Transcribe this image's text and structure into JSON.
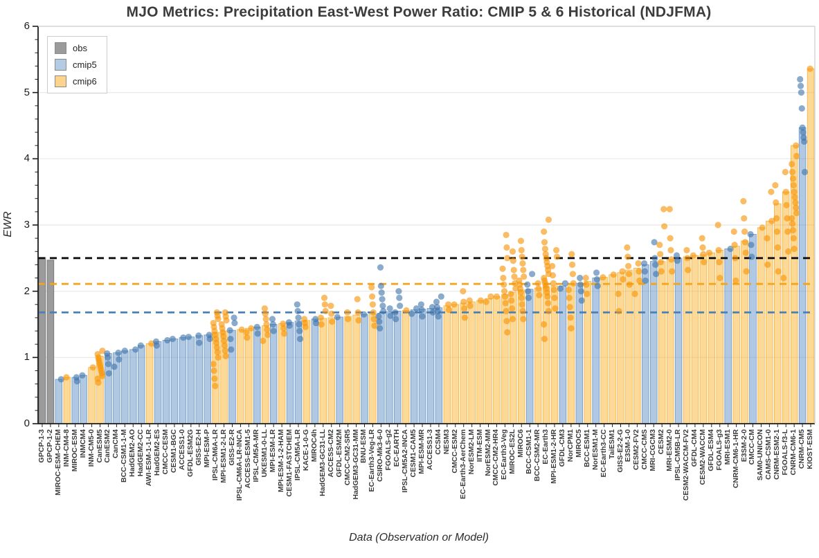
{
  "title": "MJO Metrics: Precipitation East-West Power Ratio: CMIP 5 & 6 Historical (NDJFMA)",
  "legend": {
    "items": [
      {
        "label": "obs",
        "color": "#9b9b9b"
      },
      {
        "label": "cmip5",
        "color": "#b3cce4"
      },
      {
        "label": "cmip6",
        "color": "#fdd48b"
      }
    ]
  },
  "colors": {
    "obs_bar": "#9b9b9b",
    "obs_edge": "#6f6f6f",
    "cmip5_bar": "rgba(70,125,185,0.42)",
    "cmip5_edge": "rgba(70,125,185,0.75)",
    "cmip5_dot": "rgba(62,115,170,0.60)",
    "cmip6_bar": "rgba(251,171,24,0.45)",
    "cmip6_edge": "rgba(244,160,20,0.75)",
    "cmip6_dot": "rgba(247,148,7,0.62)",
    "grid": "#ececec",
    "spine_dark": "#1a1a1a",
    "spine_light": "#cccccc",
    "ref_black": "#111111",
    "ref_orange": "#f5a31a",
    "ref_blue": "#4a7fb5"
  },
  "chart_data": {
    "type": "bar",
    "title": "MJO Metrics: Precipitation East-West Power Ratio: CMIP 5 & 6 Historical (NDJFMA)",
    "xlabel": "Data (Observation or Model)",
    "ylabel": "EWR",
    "ylim": [
      0,
      6
    ],
    "yticks": [
      0,
      1,
      2,
      3,
      4,
      5,
      6
    ],
    "y_minor_step": 0.2,
    "grid": "horizontal-major",
    "legend_position": "upper-left",
    "legend_entries": [
      "obs",
      "cmip5",
      "cmip6"
    ],
    "reference_lines": [
      {
        "name": "obs-mean",
        "value": 2.5,
        "color": "#111111",
        "style": "dashed"
      },
      {
        "name": "cmip6-mean",
        "value": 2.11,
        "color": "#f5a31a",
        "style": "dashed"
      },
      {
        "name": "cmip5-mean",
        "value": 1.68,
        "color": "#4a7fb5",
        "style": "dashed"
      }
    ],
    "bars": [
      {
        "model": "GPCP-1-3",
        "group": "obs",
        "value": 2.51,
        "scatter": []
      },
      {
        "model": "GPCP-1-2",
        "group": "obs",
        "value": 2.47,
        "scatter": []
      },
      {
        "model": "MIROC-ESM-CHEM",
        "group": "cmip5",
        "value": 0.67,
        "scatter": [
          0.67
        ]
      },
      {
        "model": "INM-CM4-8",
        "group": "cmip6",
        "value": 0.7,
        "scatter": [
          0.7
        ]
      },
      {
        "model": "MIROC-ESM",
        "group": "cmip5",
        "value": 0.7,
        "scatter": [
          0.64,
          0.7
        ]
      },
      {
        "model": "INMCM4",
        "group": "cmip5",
        "value": 0.73,
        "scatter": [
          0.73
        ]
      },
      {
        "model": "INM-CM5-0",
        "group": "cmip6",
        "value": 0.85,
        "scatter": [
          0.85
        ]
      },
      {
        "model": "CanESM5",
        "group": "cmip6",
        "value": 1.02,
        "scatter": [
          0.62,
          0.68,
          0.72,
          0.76,
          0.8,
          0.84,
          0.88,
          0.92,
          0.96,
          1.0,
          1.05,
          1.1
        ]
      },
      {
        "model": "CanESM2",
        "group": "cmip5",
        "value": 1.06,
        "scatter": [
          0.76,
          0.9,
          1.0,
          1.06
        ]
      },
      {
        "model": "CanCM4",
        "group": "cmip5",
        "value": 1.07,
        "scatter": [
          0.86,
          0.97,
          1.07
        ]
      },
      {
        "model": "BCC-CSM1-1-M",
        "group": "cmip5",
        "value": 1.1,
        "scatter": [
          1.1
        ]
      },
      {
        "model": "HadGEM2-AO",
        "group": "cmip5",
        "value": 1.12,
        "scatter": [
          1.12
        ]
      },
      {
        "model": "HadGEM2-CC",
        "group": "cmip5",
        "value": 1.18,
        "scatter": [
          1.18
        ]
      },
      {
        "model": "AWI-ESM-1-1-LR",
        "group": "cmip6",
        "value": 1.21,
        "scatter": [
          1.21
        ]
      },
      {
        "model": "HadGEM2-ES",
        "group": "cmip5",
        "value": 1.24,
        "scatter": [
          1.18,
          1.24
        ]
      },
      {
        "model": "CMCC-CESM",
        "group": "cmip5",
        "value": 1.26,
        "scatter": [
          1.26
        ]
      },
      {
        "model": "CESM1-BGC",
        "group": "cmip5",
        "value": 1.28,
        "scatter": [
          1.28
        ]
      },
      {
        "model": "ACCESS1-0",
        "group": "cmip5",
        "value": 1.3,
        "scatter": [
          1.3
        ]
      },
      {
        "model": "GFDL-ESM2G",
        "group": "cmip5",
        "value": 1.31,
        "scatter": [
          1.31
        ]
      },
      {
        "model": "GISS-E2-H",
        "group": "cmip5",
        "value": 1.33,
        "scatter": [
          1.22,
          1.33
        ]
      },
      {
        "model": "MPI-ESM-P",
        "group": "cmip5",
        "value": 1.34,
        "scatter": [
          1.28,
          1.34
        ]
      },
      {
        "model": "IPSL-CM6A-LR",
        "group": "cmip6",
        "value": 1.38,
        "scatter": [
          0.57,
          0.68,
          0.8,
          0.9,
          1.0,
          1.08,
          1.15,
          1.22,
          1.28,
          1.34,
          1.4,
          1.46,
          1.52,
          1.58,
          1.63,
          1.68
        ]
      },
      {
        "model": "MPI-ESM1-2-LR",
        "group": "cmip6",
        "value": 1.4,
        "scatter": [
          1.02,
          1.1,
          1.18,
          1.25,
          1.32,
          1.38,
          1.44,
          1.5,
          1.56,
          1.62,
          1.68
        ]
      },
      {
        "model": "GISS-E2-R",
        "group": "cmip5",
        "value": 1.41,
        "scatter": [
          1.12,
          1.28,
          1.41,
          1.52,
          1.6
        ]
      },
      {
        "model": "IPSL-CM6A-LR-INCA",
        "group": "cmip6",
        "value": 1.42,
        "scatter": [
          1.42
        ]
      },
      {
        "model": "ACCESS-ESM1-5",
        "group": "cmip6",
        "value": 1.44,
        "scatter": [
          1.3,
          1.38,
          1.44
        ]
      },
      {
        "model": "IPSL-CM5A-MR",
        "group": "cmip5",
        "value": 1.46,
        "scatter": [
          1.36,
          1.46
        ]
      },
      {
        "model": "UKESM1-0-LL",
        "group": "cmip6",
        "value": 1.48,
        "scatter": [
          1.25,
          1.34,
          1.42,
          1.5,
          1.58,
          1.66,
          1.74
        ]
      },
      {
        "model": "MPI-ESM-LR",
        "group": "cmip5",
        "value": 1.5,
        "scatter": [
          1.4,
          1.5,
          1.58
        ]
      },
      {
        "model": "MPI-ESM-1-2-HAM",
        "group": "cmip6",
        "value": 1.51,
        "scatter": [
          1.36,
          1.44,
          1.51
        ]
      },
      {
        "model": "CESM1-FASTCHEM",
        "group": "cmip5",
        "value": 1.53,
        "scatter": [
          1.48,
          1.53
        ]
      },
      {
        "model": "IPSL-CM5A-LR",
        "group": "cmip5",
        "value": 1.55,
        "scatter": [
          1.28,
          1.4,
          1.5,
          1.6,
          1.7,
          1.8
        ]
      },
      {
        "model": "KACE-1-0-G",
        "group": "cmip6",
        "value": 1.56,
        "scatter": [
          1.46,
          1.52,
          1.58
        ]
      },
      {
        "model": "MIROC4h",
        "group": "cmip5",
        "value": 1.58,
        "scatter": [
          1.52,
          1.58
        ]
      },
      {
        "model": "HadGEM3-GC31-LL",
        "group": "cmip6",
        "value": 1.59,
        "scatter": [
          1.5,
          1.6,
          1.7,
          1.8,
          1.9
        ]
      },
      {
        "model": "ACCESS-CM2",
        "group": "cmip6",
        "value": 1.6,
        "scatter": [
          1.54,
          1.66,
          1.78
        ]
      },
      {
        "model": "GFDL-ESM2M",
        "group": "cmip5",
        "value": 1.61,
        "scatter": [
          1.61
        ]
      },
      {
        "model": "CMCC-CM2-SR5",
        "group": "cmip6",
        "value": 1.62,
        "scatter": [
          1.58,
          1.68
        ]
      },
      {
        "model": "HadGEM3-GC31-MM",
        "group": "cmip6",
        "value": 1.64,
        "scatter": [
          1.56,
          1.68,
          1.88
        ]
      },
      {
        "model": "BNU-ESM",
        "group": "cmip5",
        "value": 1.65,
        "scatter": [
          1.65
        ]
      },
      {
        "model": "EC-Earth3-Veg-LR",
        "group": "cmip6",
        "value": 1.66,
        "scatter": [
          1.48,
          1.58,
          1.68,
          1.8,
          1.92,
          2.06
        ]
      },
      {
        "model": "CSIRO-Mk3-6-0",
        "group": "cmip5",
        "value": 1.67,
        "scatter": [
          1.44,
          1.54,
          1.62,
          1.7,
          1.78,
          1.88,
          1.98,
          2.08,
          2.36
        ]
      },
      {
        "model": "FGOALS-g2",
        "group": "cmip5",
        "value": 1.69,
        "scatter": [
          1.63,
          1.74
        ]
      },
      {
        "model": "EC-EARTH",
        "group": "cmip5",
        "value": 1.7,
        "scatter": [
          1.58,
          1.68,
          1.78,
          1.9,
          2.0
        ]
      },
      {
        "model": "IPSL-CM5A2-INCA",
        "group": "cmip6",
        "value": 1.71,
        "scatter": [
          1.71
        ]
      },
      {
        "model": "CESM1-CAM5",
        "group": "cmip5",
        "value": 1.72,
        "scatter": [
          1.66,
          1.74
        ]
      },
      {
        "model": "MPI-ESM-MR",
        "group": "cmip5",
        "value": 1.73,
        "scatter": [
          1.62,
          1.72,
          1.8
        ]
      },
      {
        "model": "ACCESS1-3",
        "group": "cmip5",
        "value": 1.74,
        "scatter": [
          1.68,
          1.76
        ]
      },
      {
        "model": "CCSM4",
        "group": "cmip5",
        "value": 1.75,
        "scatter": [
          1.62,
          1.7,
          1.76,
          1.84,
          1.92
        ]
      },
      {
        "model": "NESM3",
        "group": "cmip6",
        "value": 1.78,
        "scatter": [
          1.72,
          1.8
        ]
      },
      {
        "model": "CMCC-ESM2",
        "group": "cmip6",
        "value": 1.8,
        "scatter": [
          1.8
        ]
      },
      {
        "model": "EC-Earth3-AerChem",
        "group": "cmip6",
        "value": 1.82,
        "scatter": [
          1.6,
          1.74,
          1.84,
          2.0
        ]
      },
      {
        "model": "NorESM2-LM",
        "group": "cmip6",
        "value": 1.84,
        "scatter": [
          1.78,
          1.86
        ]
      },
      {
        "model": "IITM-ESM",
        "group": "cmip6",
        "value": 1.86,
        "scatter": [
          1.86
        ]
      },
      {
        "model": "NorESM2-MM",
        "group": "cmip6",
        "value": 1.89,
        "scatter": [
          1.84,
          1.92
        ]
      },
      {
        "model": "CMCC-CM2-HR4",
        "group": "cmip6",
        "value": 1.92,
        "scatter": [
          1.92
        ]
      },
      {
        "model": "EC-Earth3-Veg",
        "group": "cmip6",
        "value": 1.95,
        "scatter": [
          1.38,
          1.55,
          1.7,
          1.82,
          1.92,
          2.0,
          2.1,
          2.2,
          2.34,
          2.5,
          2.66,
          2.85
        ]
      },
      {
        "model": "MIROC-ES2L",
        "group": "cmip6",
        "value": 1.98,
        "scatter": [
          1.58,
          1.74,
          1.86,
          1.96,
          2.04,
          2.12,
          2.22,
          2.32,
          2.46,
          2.6
        ]
      },
      {
        "model": "MIROC6",
        "group": "cmip6",
        "value": 2.02,
        "scatter": [
          1.58,
          1.7,
          1.8,
          1.9,
          1.98,
          2.04,
          2.1,
          2.16,
          2.22,
          2.32,
          2.42,
          2.52,
          2.62,
          2.76
        ]
      },
      {
        "model": "BCC-CSM1-1",
        "group": "cmip5",
        "value": 2.03,
        "scatter": [
          1.9,
          2.0,
          2.1,
          2.26
        ]
      },
      {
        "model": "BCC-CSM2-MR",
        "group": "cmip6",
        "value": 2.05,
        "scatter": [
          1.94,
          2.04,
          2.12
        ]
      },
      {
        "model": "EC-Earth3",
        "group": "cmip6",
        "value": 2.07,
        "scatter": [
          1.28,
          1.5,
          1.7,
          1.82,
          1.92,
          1.98,
          2.04,
          2.08,
          2.12,
          2.16,
          2.2,
          2.26,
          2.32,
          2.38,
          2.44,
          2.5,
          2.56,
          2.64,
          2.74,
          2.9,
          3.08
        ]
      },
      {
        "model": "MPI-ESM1-2-HR",
        "group": "cmip6",
        "value": 2.08,
        "scatter": [
          1.74,
          1.9,
          2.02,
          2.12,
          2.24,
          2.38,
          2.52,
          2.62
        ]
      },
      {
        "model": "GFDL-CM3",
        "group": "cmip5",
        "value": 2.08,
        "scatter": [
          2.04,
          2.12
        ]
      },
      {
        "model": "NorCPM1",
        "group": "cmip6",
        "value": 2.1,
        "scatter": [
          1.44,
          1.6,
          1.76,
          1.9,
          2.02,
          2.12,
          2.26,
          2.4,
          2.56
        ]
      },
      {
        "model": "MIROC5",
        "group": "cmip5",
        "value": 2.12,
        "scatter": [
          1.86,
          2.0,
          2.1,
          2.2
        ]
      },
      {
        "model": "BCC-ESM1",
        "group": "cmip6",
        "value": 2.15,
        "scatter": [
          1.96,
          2.1,
          2.2
        ]
      },
      {
        "model": "NorESM1-M",
        "group": "cmip5",
        "value": 2.2,
        "scatter": [
          2.08,
          2.18,
          2.28
        ]
      },
      {
        "model": "EC-Earth3-CC",
        "group": "cmip6",
        "value": 2.21,
        "scatter": [
          2.21
        ]
      },
      {
        "model": "TaiESM1",
        "group": "cmip6",
        "value": 2.25,
        "scatter": [
          2.25
        ]
      },
      {
        "model": "GISS-E2-2-G",
        "group": "cmip6",
        "value": 2.28,
        "scatter": [
          1.7,
          1.96,
          2.18,
          2.3
        ]
      },
      {
        "model": "E3SM-1-0",
        "group": "cmip6",
        "value": 2.32,
        "scatter": [
          2.1,
          2.26,
          2.38,
          2.52,
          2.66
        ]
      },
      {
        "model": "CESM2-FV2",
        "group": "cmip6",
        "value": 2.35,
        "scatter": [
          1.96,
          2.16,
          2.3,
          2.42
        ]
      },
      {
        "model": "CMCC-CMS",
        "group": "cmip5",
        "value": 2.4,
        "scatter": [
          2.16,
          2.3,
          2.42
        ]
      },
      {
        "model": "MRI-CGCM3",
        "group": "cmip5",
        "value": 2.45,
        "scatter": [
          2.26,
          2.4,
          2.5,
          2.74
        ]
      },
      {
        "model": "CESM2",
        "group": "cmip6",
        "value": 2.45,
        "scatter": [
          2.3,
          2.44,
          2.56,
          2.7,
          2.98,
          3.24
        ]
      },
      {
        "model": "MRI-ESM2-0",
        "group": "cmip6",
        "value": 2.48,
        "scatter": [
          2.3,
          2.48,
          2.62,
          2.8,
          3.24
        ]
      },
      {
        "model": "IPSL-CM5B-LR",
        "group": "cmip5",
        "value": 2.5,
        "scatter": [
          2.46,
          2.54
        ]
      },
      {
        "model": "CESM2-WACCM-FV2",
        "group": "cmip6",
        "value": 2.52,
        "scatter": [
          2.32,
          2.5,
          2.62
        ]
      },
      {
        "model": "GFDL-CM4",
        "group": "cmip6",
        "value": 2.54,
        "scatter": [
          2.54
        ]
      },
      {
        "model": "CESM2-WACCM",
        "group": "cmip6",
        "value": 2.55,
        "scatter": [
          2.44,
          2.56,
          2.66,
          2.8
        ]
      },
      {
        "model": "GFDL-ESM4",
        "group": "cmip6",
        "value": 2.58,
        "scatter": [
          2.58
        ]
      },
      {
        "model": "FGOALS-g3",
        "group": "cmip6",
        "value": 2.62,
        "scatter": [
          2.2,
          2.44,
          2.62,
          3.0
        ]
      },
      {
        "model": "MRI-ESM1",
        "group": "cmip5",
        "value": 2.64,
        "scatter": [
          2.64
        ]
      },
      {
        "model": "CNRM-CM6-1-HR",
        "group": "cmip6",
        "value": 2.68,
        "scatter": [
          2.16,
          2.5,
          2.7,
          2.9
        ]
      },
      {
        "model": "E3SM-2-0",
        "group": "cmip6",
        "value": 2.76,
        "scatter": [
          2.3,
          2.58,
          2.74,
          2.9,
          3.1,
          3.36
        ]
      },
      {
        "model": "CMCC-CM",
        "group": "cmip5",
        "value": 2.86,
        "scatter": [
          2.52,
          2.7,
          2.86
        ]
      },
      {
        "model": "SAM0-UNICON",
        "group": "cmip6",
        "value": 2.96,
        "scatter": [
          2.96
        ]
      },
      {
        "model": "CAMS-CSM1-0",
        "group": "cmip6",
        "value": 3.06,
        "scatter": [
          2.4,
          2.8,
          3.06,
          3.5
        ]
      },
      {
        "model": "CNRM-ESM2-1",
        "group": "cmip6",
        "value": 3.32,
        "scatter": [
          2.3,
          2.66,
          2.9,
          3.1,
          3.34,
          3.6
        ]
      },
      {
        "model": "FGOALS-f3-L",
        "group": "cmip6",
        "value": 3.5,
        "scatter": [
          2.2,
          2.6,
          2.9,
          3.1,
          3.3,
          3.5,
          3.8
        ]
      },
      {
        "model": "CNRM-CM6-1",
        "group": "cmip6",
        "value": 4.2,
        "scatter": [
          2.64,
          2.8,
          2.92,
          3.02,
          3.1,
          3.18,
          3.26,
          3.34,
          3.42,
          3.5,
          3.6,
          3.7,
          3.8,
          3.92,
          4.04,
          4.2
        ]
      },
      {
        "model": "CNRM-CM5",
        "group": "cmip5",
        "value": 4.47,
        "scatter": [
          3.8,
          4.26,
          4.32,
          4.4,
          4.47,
          4.76,
          5.0,
          5.1,
          5.2
        ]
      },
      {
        "model": "KIOST-ESM",
        "group": "cmip6",
        "value": 5.36,
        "scatter": [
          5.36
        ]
      }
    ]
  }
}
